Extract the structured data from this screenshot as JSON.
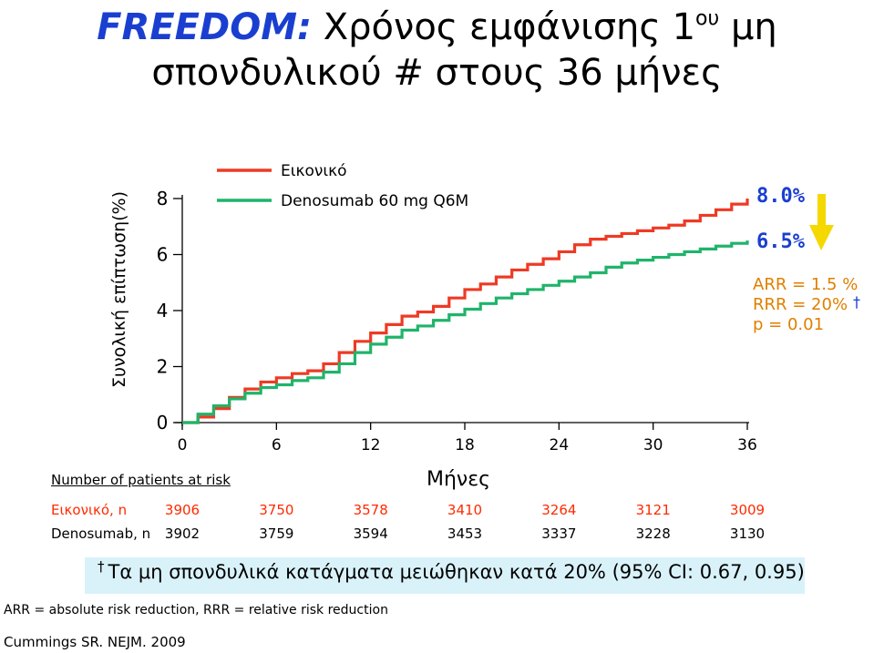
{
  "title": {
    "brand": "FREEDOM:",
    "line1_rest": "Χρόνος εμφάνισης 1",
    "line1_sup": "ου",
    "line1_end": "μη",
    "line2": "σπονδυλικού # στους 36 μήνες"
  },
  "chart_data": {
    "type": "line",
    "ylabel": "Συνολική επίπτωση(%)",
    "xlabel": "Μήνες",
    "xlim": [
      0,
      36
    ],
    "ylim": [
      0,
      8
    ],
    "x_ticks": [
      "0",
      "6",
      "12",
      "18",
      "24",
      "30",
      "36"
    ],
    "y_ticks": [
      "0",
      "2",
      "4",
      "6",
      "8"
    ],
    "series": [
      {
        "name": "Εικονικό",
        "color": "#ee3a24",
        "x": [
          0,
          1,
          2,
          3,
          4,
          5,
          6,
          7,
          8,
          9,
          10,
          11,
          12,
          13,
          14,
          15,
          16,
          17,
          18,
          19,
          20,
          21,
          22,
          23,
          24,
          25,
          26,
          27,
          28,
          29,
          30,
          31,
          32,
          33,
          34,
          35,
          36
        ],
        "values": [
          0,
          0.2,
          0.5,
          0.9,
          1.2,
          1.45,
          1.6,
          1.75,
          1.85,
          2.1,
          2.5,
          2.9,
          3.2,
          3.5,
          3.8,
          3.95,
          4.15,
          4.45,
          4.75,
          4.95,
          5.2,
          5.45,
          5.65,
          5.85,
          6.1,
          6.35,
          6.55,
          6.65,
          6.75,
          6.85,
          6.95,
          7.05,
          7.2,
          7.4,
          7.6,
          7.8,
          8.0
        ]
      },
      {
        "name": "Denosumab 60 mg Q6M",
        "color": "#1fb46a",
        "x": [
          0,
          1,
          2,
          3,
          4,
          5,
          6,
          7,
          8,
          9,
          10,
          11,
          12,
          13,
          14,
          15,
          16,
          17,
          18,
          19,
          20,
          21,
          22,
          23,
          24,
          25,
          26,
          27,
          28,
          29,
          30,
          31,
          32,
          33,
          34,
          35,
          36
        ],
        "values": [
          0,
          0.3,
          0.6,
          0.85,
          1.05,
          1.25,
          1.35,
          1.5,
          1.6,
          1.8,
          2.1,
          2.5,
          2.8,
          3.05,
          3.3,
          3.45,
          3.65,
          3.85,
          4.05,
          4.25,
          4.45,
          4.6,
          4.75,
          4.9,
          5.05,
          5.2,
          5.35,
          5.55,
          5.7,
          5.8,
          5.9,
          6.0,
          6.1,
          6.2,
          6.3,
          6.4,
          6.5
        ]
      }
    ],
    "end_labels": {
      "placebo": "8.0%",
      "denosumab": "6.5%"
    },
    "stats": {
      "arr": "ARR = 1.5 %",
      "rrr": "RRR = 20%",
      "p": "p = 0.01"
    },
    "arrow_color": "#f5d800",
    "dagger": "†"
  },
  "risk_table": {
    "title": "Number of patients at risk",
    "placebo_label": "Εικονικό, n",
    "placebo_values": [
      "3906",
      "3750",
      "3578",
      "3410",
      "3264",
      "3121",
      "3009"
    ],
    "deno_label": "Denosumab, n",
    "deno_values": [
      "3902",
      "3759",
      "3594",
      "3453",
      "3337",
      "3228",
      "3130"
    ]
  },
  "footnote": {
    "dagger": "†",
    "text": "Τα μη σπονδυλικά κατάγματα μειώθηκαν κατά 20% (95% CI: 0.67, 0.95)"
  },
  "abbreviations": "ARR = absolute risk reduction,  RRR = relative risk reduction",
  "citation": "Cummings SR. NEJM. 2009"
}
